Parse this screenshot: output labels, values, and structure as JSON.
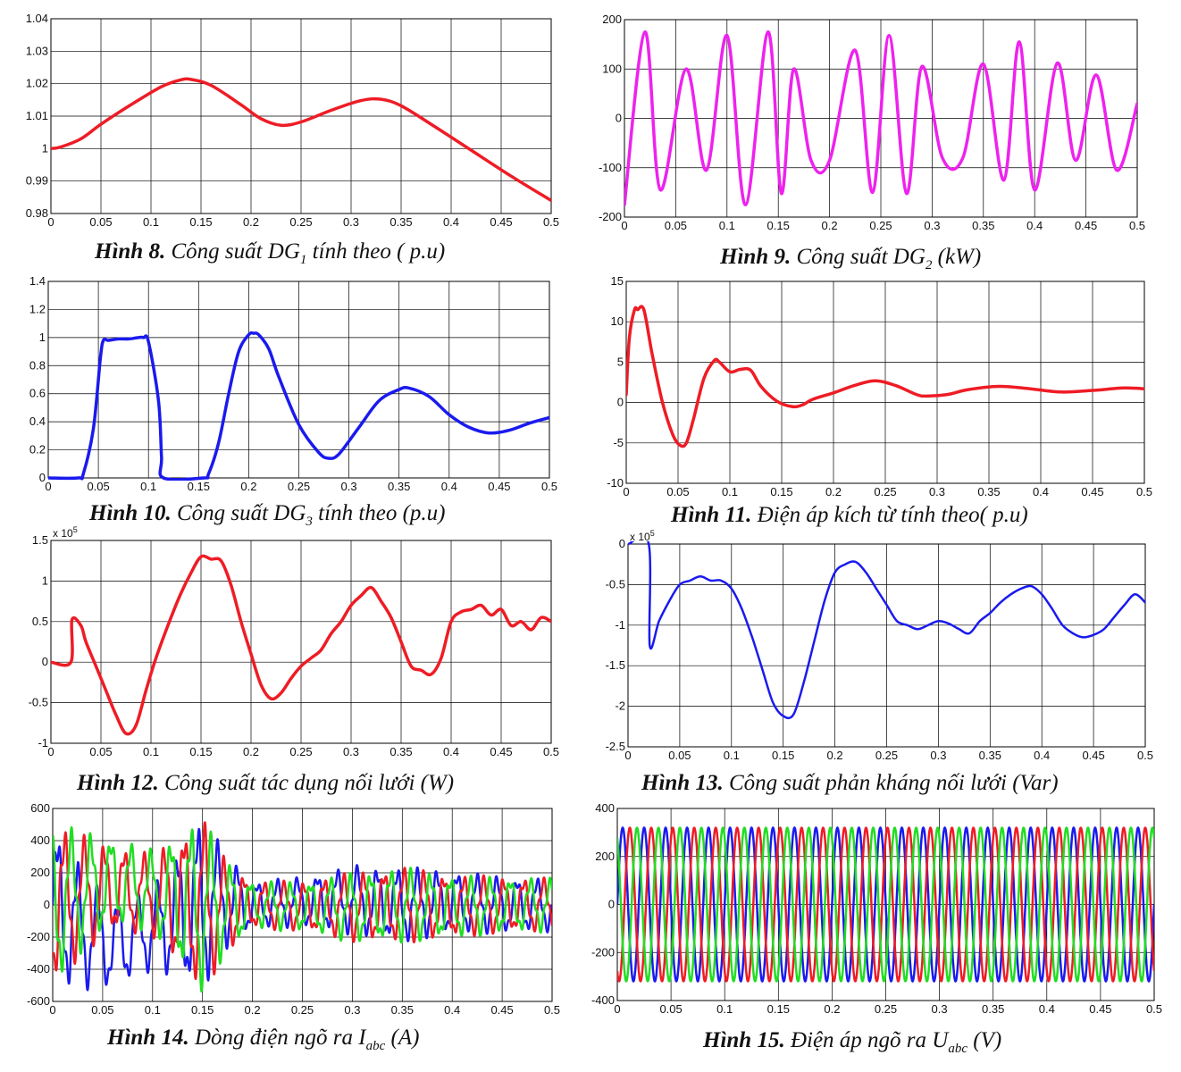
{
  "chart_data": [
    {
      "id": "fig8",
      "type": "line",
      "caption": {
        "label": "Hình 8.",
        "pre": "Công suất DG",
        "sub": "1",
        "post": " tính theo ( p.u)"
      },
      "xlim": [
        0,
        0.5
      ],
      "ylim": [
        0.98,
        1.04
      ],
      "xticks": [
        0,
        0.05,
        0.1,
        0.15,
        0.2,
        0.25,
        0.3,
        0.35,
        0.4,
        0.45,
        0.5
      ],
      "xtick_labels": [
        "0",
        "0.05",
        "0.1",
        "0.15",
        "0.2",
        "0.25",
        "0.3",
        "0.35",
        "0.4",
        "0.45",
        "0.5"
      ],
      "yticks": [
        0.98,
        0.99,
        1,
        1.01,
        1.02,
        1.03,
        1.04
      ],
      "ytick_labels": [
        "0.98",
        "0.99",
        "1",
        "1.01",
        "1.02",
        "1.03",
        "1.04"
      ],
      "grid": true,
      "series": [
        {
          "color": "#ee1c25",
          "width": 3.5,
          "x": [
            0,
            0.01,
            0.03,
            0.05,
            0.08,
            0.11,
            0.13,
            0.14,
            0.16,
            0.19,
            0.21,
            0.23,
            0.25,
            0.28,
            0.31,
            0.33,
            0.35,
            0.38,
            0.42,
            0.46,
            0.5
          ],
          "y": [
            1.0,
            1.0005,
            1.003,
            1.0075,
            1.0135,
            1.019,
            1.0212,
            1.0213,
            1.0195,
            1.0135,
            1.0092,
            1.0072,
            1.0082,
            1.0118,
            1.0148,
            1.0152,
            1.0132,
            1.0075,
            0.9995,
            0.9915,
            0.984
          ]
        }
      ]
    },
    {
      "id": "fig9",
      "type": "line",
      "caption": {
        "label": "Hình 9.",
        "pre": "Công suất DG",
        "sub": "2",
        "post": " (kW)"
      },
      "xlim": [
        0,
        0.5
      ],
      "ylim": [
        -200,
        200
      ],
      "xticks": [
        0,
        0.05,
        0.1,
        0.15,
        0.2,
        0.25,
        0.3,
        0.35,
        0.4,
        0.45,
        0.5
      ],
      "xtick_labels": [
        "0",
        "0.05",
        "0.1",
        "0.15",
        "0.2",
        "0.25",
        "0.3",
        "0.35",
        "0.4",
        "0.45",
        "0.5"
      ],
      "yticks": [
        -200,
        -100,
        0,
        100,
        200
      ],
      "ytick_labels": [
        "-200",
        "-100",
        "0",
        "100",
        "200"
      ],
      "grid": true,
      "series": [
        {
          "color": "#ee22ee",
          "width": 3.5,
          "x": [
            0,
            0.02,
            0.035,
            0.06,
            0.08,
            0.1,
            0.118,
            0.14,
            0.153,
            0.165,
            0.182,
            0.2,
            0.225,
            0.242,
            0.258,
            0.275,
            0.29,
            0.31,
            0.33,
            0.35,
            0.37,
            0.385,
            0.4,
            0.422,
            0.44,
            0.46,
            0.48,
            0.5
          ],
          "y": [
            -175,
            175,
            -145,
            100,
            -105,
            168,
            -175,
            175,
            -152,
            100,
            -85,
            -85,
            138,
            -150,
            168,
            -152,
            105,
            -80,
            -80,
            110,
            -125,
            155,
            -145,
            112,
            -85,
            88,
            -105,
            30
          ]
        }
      ]
    },
    {
      "id": "fig10",
      "type": "line",
      "caption": {
        "label": "Hình 10.",
        "pre": "Công suất DG",
        "sub": "3",
        "post": " tính theo (p.u)"
      },
      "xlim": [
        0,
        0.5
      ],
      "ylim": [
        0,
        1.4
      ],
      "xticks": [
        0,
        0.05,
        0.1,
        0.15,
        0.2,
        0.25,
        0.3,
        0.35,
        0.4,
        0.45,
        0.5
      ],
      "xtick_labels": [
        "0",
        "0.05",
        "0.1",
        "0.15",
        "0.2",
        "0.25",
        "0.3",
        "0.35",
        "0.4",
        "0.45",
        "0.5"
      ],
      "yticks": [
        0,
        0.2,
        0.4,
        0.6,
        0.8,
        1,
        1.2,
        1.4
      ],
      "ytick_labels": [
        "0",
        "0.2",
        "0.4",
        "0.6",
        "0.8",
        "1",
        "1.2",
        "1.4"
      ],
      "grid": true,
      "series": [
        {
          "color": "#1a1aee",
          "width": 3.5,
          "x": [
            0,
            0.03,
            0.035,
            0.045,
            0.052,
            0.055,
            0.06,
            0.07,
            0.08,
            0.09,
            0.095,
            0.1,
            0.11,
            0.113,
            0.115,
            0.155,
            0.16,
            0.17,
            0.18,
            0.19,
            0.2,
            0.205,
            0.21,
            0.22,
            0.23,
            0.25,
            0.27,
            0.28,
            0.29,
            0.31,
            0.33,
            0.35,
            0.36,
            0.38,
            0.4,
            0.42,
            0.44,
            0.46,
            0.48,
            0.5
          ],
          "y": [
            0,
            0,
            0.03,
            0.35,
            0.85,
            0.98,
            0.98,
            0.99,
            0.99,
            1.0,
            1.0,
            0.97,
            0.55,
            0.15,
            0,
            0,
            0.03,
            0.25,
            0.6,
            0.9,
            1.02,
            1.03,
            1.02,
            0.92,
            0.72,
            0.38,
            0.18,
            0.14,
            0.17,
            0.36,
            0.55,
            0.63,
            0.64,
            0.58,
            0.45,
            0.36,
            0.32,
            0.34,
            0.39,
            0.43
          ]
        }
      ]
    },
    {
      "id": "fig11",
      "type": "line",
      "caption": {
        "label": "Hình 11.",
        "pre": "Điện áp kích từ tính theo( p.u)",
        "sub": "",
        "post": ""
      },
      "xlim": [
        0,
        0.5
      ],
      "ylim": [
        -10,
        15
      ],
      "xticks": [
        0,
        0.05,
        0.1,
        0.15,
        0.2,
        0.25,
        0.3,
        0.35,
        0.4,
        0.45,
        0.5
      ],
      "xtick_labels": [
        "0",
        "0.05",
        "0.1",
        "0.15",
        "0.2",
        "0.25",
        "0.3",
        "0.35",
        "0.4",
        "0.45",
        "0.5"
      ],
      "yticks": [
        -10,
        -5,
        0,
        5,
        10,
        15
      ],
      "ytick_labels": [
        "-10",
        "-5",
        "0",
        "5",
        "10",
        "15"
      ],
      "grid": true,
      "series": [
        {
          "color": "#ee1c25",
          "width": 3.5,
          "x": [
            0,
            0.003,
            0.008,
            0.011,
            0.017,
            0.025,
            0.035,
            0.045,
            0.052,
            0.058,
            0.065,
            0.075,
            0.085,
            0.09,
            0.1,
            0.11,
            0.12,
            0.13,
            0.145,
            0.16,
            0.17,
            0.18,
            0.2,
            0.22,
            0.24,
            0.26,
            0.28,
            0.29,
            0.31,
            0.33,
            0.36,
            0.39,
            0.42,
            0.45,
            0.48,
            0.5
          ],
          "y": [
            1,
            8,
            11.5,
            11.5,
            11.5,
            6,
            0,
            -4,
            -5.3,
            -5,
            -2,
            3,
            5.2,
            5,
            3.8,
            4.1,
            4.0,
            2.0,
            0.2,
            -0.5,
            -0.3,
            0.4,
            1.2,
            2.1,
            2.7,
            2.1,
            1.0,
            0.8,
            1.0,
            1.6,
            2.0,
            1.7,
            1.3,
            1.5,
            1.8,
            1.7
          ]
        }
      ]
    },
    {
      "id": "fig12",
      "type": "line",
      "caption": {
        "label": "Hình 12.",
        "pre": "Công suất tác dụng nối lưới (W)",
        "sub": "",
        "post": ""
      },
      "exponent": "x 10",
      "exponent_power": "5",
      "xlim": [
        0,
        0.5
      ],
      "ylim": [
        -1,
        1.5
      ],
      "xticks": [
        0,
        0.05,
        0.1,
        0.15,
        0.2,
        0.25,
        0.3,
        0.35,
        0.4,
        0.45,
        0.5
      ],
      "xtick_labels": [
        "0",
        "0.05",
        "0.1",
        "0.15",
        "0.2",
        "0.25",
        "0.3",
        "0.35",
        "0.4",
        "0.45",
        "0.5"
      ],
      "yticks": [
        -1,
        -0.5,
        0,
        0.5,
        1,
        1.5
      ],
      "ytick_labels": [
        "-1",
        "-0.5",
        "0",
        "0.5",
        "1",
        "1.5"
      ],
      "grid": true,
      "series": [
        {
          "color": "#ee1c25",
          "width": 3.5,
          "x": [
            0,
            0.02,
            0.021,
            0.03,
            0.035,
            0.045,
            0.055,
            0.065,
            0.075,
            0.085,
            0.095,
            0.105,
            0.12,
            0.13,
            0.14,
            0.15,
            0.16,
            0.17,
            0.18,
            0.19,
            0.2,
            0.21,
            0.22,
            0.23,
            0.24,
            0.25,
            0.26,
            0.27,
            0.28,
            0.29,
            0.3,
            0.31,
            0.32,
            0.33,
            0.34,
            0.35,
            0.36,
            0.37,
            0.38,
            0.39,
            0.4,
            0.41,
            0.42,
            0.43,
            0.44,
            0.45,
            0.46,
            0.47,
            0.48,
            0.49,
            0.5
          ],
          "y": [
            0,
            0,
            0.52,
            0.45,
            0.25,
            -0.05,
            -0.35,
            -0.65,
            -0.88,
            -0.78,
            -0.35,
            0.05,
            0.55,
            0.85,
            1.1,
            1.3,
            1.27,
            1.25,
            0.95,
            0.5,
            0.1,
            -0.28,
            -0.45,
            -0.38,
            -0.2,
            -0.05,
            0.05,
            0.15,
            0.35,
            0.5,
            0.7,
            0.82,
            0.92,
            0.75,
            0.55,
            0.25,
            -0.05,
            -0.1,
            -0.15,
            0.05,
            0.5,
            0.62,
            0.65,
            0.7,
            0.58,
            0.65,
            0.45,
            0.5,
            0.4,
            0.55,
            0.5
          ]
        }
      ]
    },
    {
      "id": "fig13",
      "type": "line",
      "caption": {
        "label": "Hình 13.",
        "pre": "Công suất phản kháng nối lưới (Var)",
        "sub": "",
        "post": ""
      },
      "exponent": "x 10",
      "exponent_power": "5",
      "xlim": [
        0,
        0.5
      ],
      "ylim": [
        -2.5,
        0
      ],
      "xticks": [
        0,
        0.05,
        0.1,
        0.15,
        0.2,
        0.25,
        0.3,
        0.35,
        0.4,
        0.45,
        0.5
      ],
      "xtick_labels": [
        "0",
        "0.05",
        "0.1",
        "0.15",
        "0.2",
        "0.25",
        "0.3",
        "0.35",
        "0.4",
        "0.45",
        "0.5"
      ],
      "yticks": [
        -2.5,
        -2,
        -1.5,
        -1,
        -0.5,
        0
      ],
      "ytick_labels": [
        "-2.5",
        "-2",
        "-1.5",
        "-1",
        "-0.5",
        "0"
      ],
      "grid": true,
      "series": [
        {
          "color": "#1a1aee",
          "width": 2.5,
          "x": [
            0,
            0.02,
            0.021,
            0.03,
            0.04,
            0.05,
            0.06,
            0.07,
            0.08,
            0.09,
            0.1,
            0.11,
            0.12,
            0.13,
            0.14,
            0.15,
            0.16,
            0.17,
            0.18,
            0.19,
            0.2,
            0.21,
            0.22,
            0.23,
            0.24,
            0.25,
            0.26,
            0.27,
            0.28,
            0.29,
            0.3,
            0.31,
            0.32,
            0.33,
            0.34,
            0.35,
            0.36,
            0.37,
            0.38,
            0.39,
            0.4,
            0.41,
            0.42,
            0.43,
            0.44,
            0.45,
            0.46,
            0.47,
            0.48,
            0.49,
            0.5
          ],
          "y": [
            0,
            0,
            -1.25,
            -0.95,
            -0.7,
            -0.5,
            -0.45,
            -0.4,
            -0.45,
            -0.45,
            -0.55,
            -0.8,
            -1.15,
            -1.55,
            -1.95,
            -2.12,
            -2.1,
            -1.7,
            -1.2,
            -0.7,
            -0.35,
            -0.25,
            -0.22,
            -0.35,
            -0.55,
            -0.75,
            -0.95,
            -1.0,
            -1.05,
            -1.0,
            -0.95,
            -0.98,
            -1.05,
            -1.1,
            -0.95,
            -0.85,
            -0.72,
            -0.62,
            -0.55,
            -0.52,
            -0.62,
            -0.8,
            -1.0,
            -1.1,
            -1.15,
            -1.12,
            -1.05,
            -0.9,
            -0.75,
            -0.62,
            -0.72
          ]
        }
      ]
    },
    {
      "id": "fig14",
      "type": "line",
      "caption": {
        "label": "Hình 14.",
        "pre": "Dòng điện ngõ ra I",
        "sub": "abc",
        "post": " (A)"
      },
      "xlim": [
        0,
        0.5
      ],
      "ylim": [
        -600,
        600
      ],
      "xticks": [
        0,
        0.05,
        0.1,
        0.15,
        0.2,
        0.25,
        0.3,
        0.35,
        0.4,
        0.45,
        0.5
      ],
      "xtick_labels": [
        "0",
        "0.05",
        "0.1",
        "0.15",
        "0.2",
        "0.25",
        "0.3",
        "0.35",
        "0.4",
        "0.45",
        "0.5"
      ],
      "yticks": [
        -600,
        -400,
        -200,
        0,
        200,
        400,
        600
      ],
      "ytick_labels": [
        "-600",
        "-400",
        "-200",
        "0",
        "200",
        "400",
        "600"
      ],
      "grid": true,
      "three_phase": {
        "frequency": 50,
        "colors": [
          "#1a1aee",
          "#ee1c25",
          "#22dd22"
        ],
        "env_x": [
          0,
          0.03,
          0.06,
          0.1,
          0.13,
          0.15,
          0.17,
          0.2,
          0.25,
          0.3,
          0.35,
          0.4,
          0.45,
          0.5
        ],
        "env_y": [
          520,
          380,
          280,
          260,
          450,
          560,
          330,
          150,
          160,
          220,
          240,
          200,
          180,
          170
        ],
        "offset_y": [
          0,
          -150,
          -250,
          -150,
          -50,
          0,
          30,
          0,
          20,
          30,
          0,
          20,
          0,
          0
        ]
      }
    },
    {
      "id": "fig15",
      "type": "line",
      "caption": {
        "label": "Hình 15.",
        "pre": "Điện áp ngõ ra U",
        "sub": "abc",
        "post": " (V)"
      },
      "xlim": [
        0,
        0.5
      ],
      "ylim": [
        -400,
        400
      ],
      "xticks": [
        0,
        0.05,
        0.1,
        0.15,
        0.2,
        0.25,
        0.3,
        0.35,
        0.4,
        0.45,
        0.5
      ],
      "xtick_labels": [
        "0",
        "0.05",
        "0.1",
        "0.15",
        "0.2",
        "0.25",
        "0.3",
        "0.35",
        "0.4",
        "0.45",
        "0.5"
      ],
      "yticks": [
        -400,
        -200,
        0,
        200,
        400
      ],
      "ytick_labels": [
        "-400",
        "-200",
        "0",
        "200",
        "400"
      ],
      "grid": true,
      "three_phase": {
        "frequency": 50,
        "amplitude": 320,
        "colors": [
          "#1a1aee",
          "#ee1c25",
          "#22dd22"
        ]
      }
    }
  ]
}
